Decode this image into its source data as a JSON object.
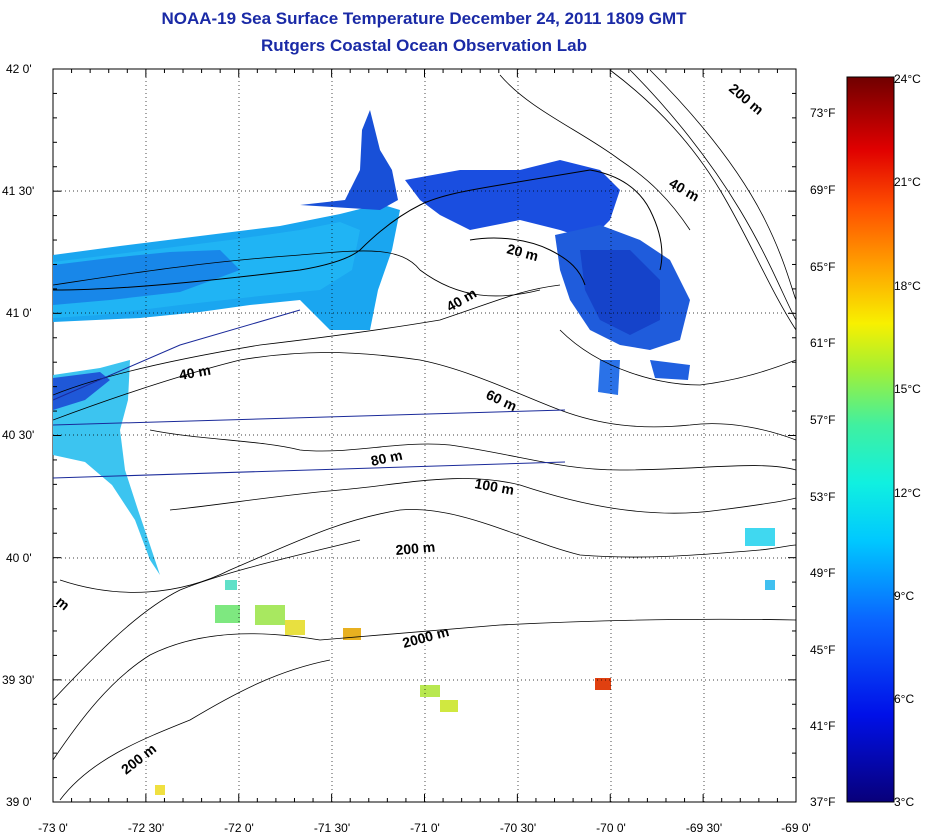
{
  "title_line1": "NOAA-19 Sea Surface Temperature December 24, 2011 1809 GMT",
  "title_line2": "Rutgers Coastal Ocean Observation Lab",
  "longitude_labels": [
    "-73 0'",
    "-72 30'",
    "-72 0'",
    "-71 30'",
    "-71 0'",
    "-70 30'",
    "-70 0'",
    "-69 30'",
    "-69 0'"
  ],
  "latitude_labels": [
    "42 0'",
    "41 30'",
    "41 0'",
    "40 30'",
    "40 0'",
    "39 30'",
    "39 0'"
  ],
  "colorbar": {
    "celsius_labels": [
      "24°C",
      "21°C",
      "18°C",
      "15°C",
      "12°C",
      "9°C",
      "6°C",
      "3°C"
    ],
    "fahrenheit_labels": [
      "73°F",
      "69°F",
      "65°F",
      "61°F",
      "57°F",
      "53°F",
      "49°F",
      "45°F",
      "41°F",
      "37°F"
    ],
    "range_c": [
      3,
      24
    ]
  },
  "contour_labels": [
    "200 m",
    "40 m",
    "20 m",
    "40 m",
    "40 m",
    "60 m",
    "80 m",
    "100 m",
    "200 m",
    "2000 m",
    "200 m",
    "m"
  ],
  "colors": {
    "title": "#1a2aa6",
    "land_line": "#000000",
    "grid": "#000000"
  }
}
